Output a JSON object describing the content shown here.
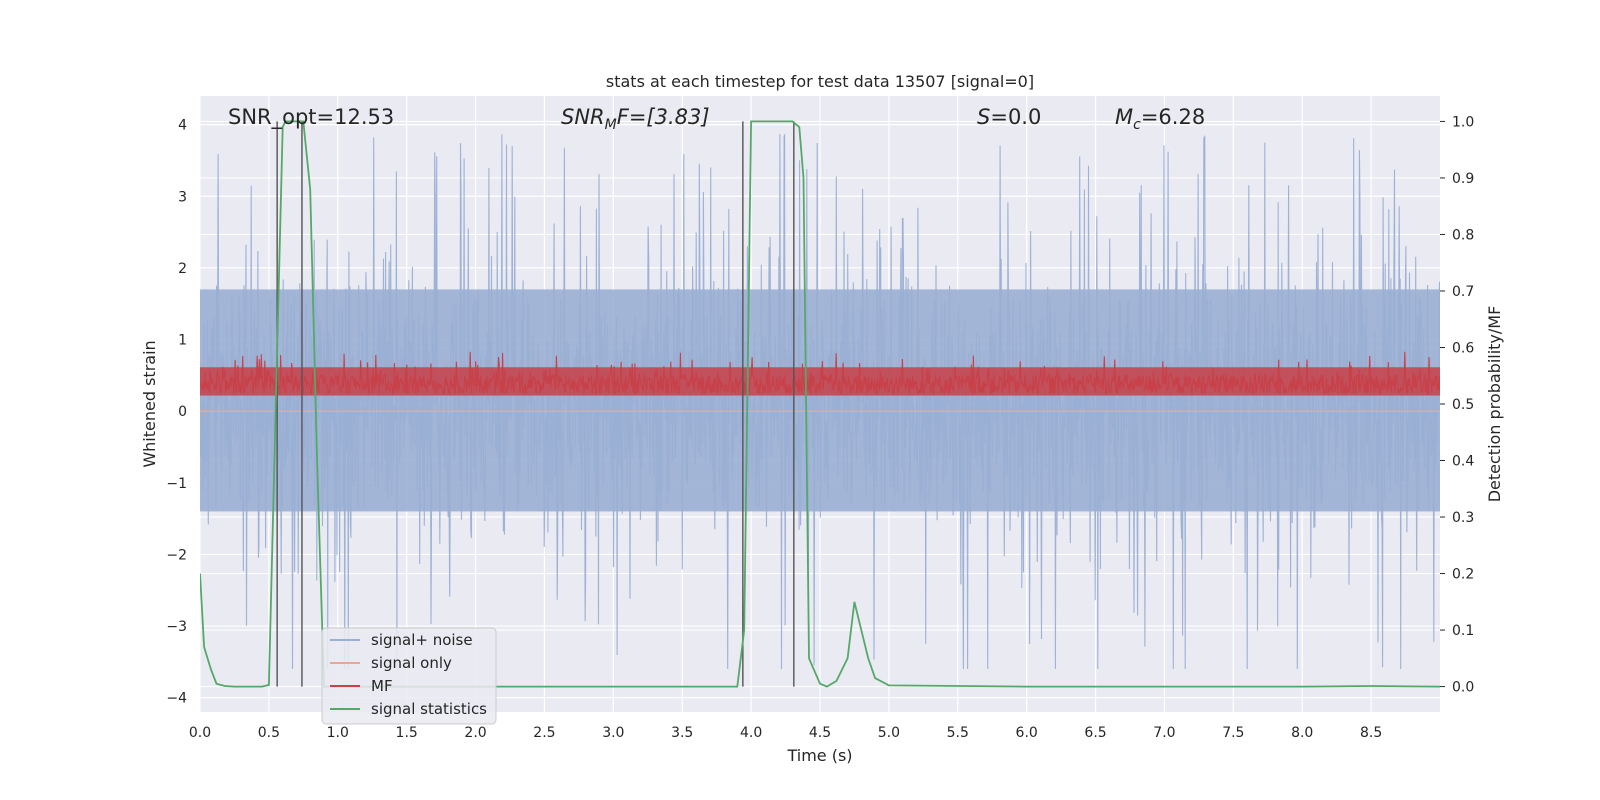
{
  "chart_data": {
    "type": "line",
    "title": "stats at each timestep for test data 13507 [signal=0]",
    "xlabel": "Time (s)",
    "ylabel_left": "Whitened strain",
    "ylabel_right": "Detection probability/MF",
    "xlim": [
      0.0,
      9.0
    ],
    "ylim_left": [
      -4.2,
      4.4
    ],
    "ylim_right": [
      -0.045,
      1.045
    ],
    "xticks": [
      "0.0",
      "0.5",
      "1.0",
      "1.5",
      "2.0",
      "2.5",
      "3.0",
      "3.5",
      "4.0",
      "4.5",
      "5.0",
      "5.5",
      "6.0",
      "6.5",
      "7.0",
      "7.5",
      "8.0",
      "8.5"
    ],
    "yticks_left": [
      "4",
      "3",
      "2",
      "1",
      "0",
      "−1",
      "−2",
      "−3",
      "−4"
    ],
    "yticks_right": [
      "1.0",
      "0.9",
      "0.8",
      "0.7",
      "0.6",
      "0.5",
      "0.4",
      "0.3",
      "0.2",
      "0.1",
      "0.0"
    ],
    "grid": true,
    "legend_placement": "lower-left",
    "annotations": {
      "snr_opt": "SNR_opt=12.53",
      "snr_mf_prefix": "SNR",
      "snr_mf_sub": "M",
      "snr_mf_suffix": "F=[3.83]",
      "s_var": "S",
      "s_value": "=0.0",
      "mc_var": "M",
      "mc_sub": "c",
      "mc_value": "=6.28"
    },
    "series": [
      {
        "name": "signal+ noise",
        "axis": "left",
        "color": "#9aafd4",
        "style": "dense noise",
        "description_values": {
          "core_min": -1.4,
          "core_max": 1.7,
          "spike_min": -3.6,
          "spike_max": 3.9
        }
      },
      {
        "name": "signal only",
        "axis": "left",
        "color": "#e9a890",
        "x": [
          0.0,
          9.0
        ],
        "values": [
          0.0,
          0.0
        ]
      },
      {
        "name": "MF",
        "axis": "right",
        "color": "#c84048",
        "style": "dense noise",
        "description_values": {
          "min": 0.5,
          "max": 0.6
        }
      },
      {
        "name": "signal statistics",
        "axis": "right",
        "color": "#55a868",
        "x": [
          0.0,
          0.03,
          0.08,
          0.12,
          0.18,
          0.25,
          0.35,
          0.45,
          0.5,
          0.55,
          0.6,
          0.62,
          0.7,
          0.75,
          0.8,
          0.85,
          0.9,
          1.0,
          2.0,
          3.0,
          3.9,
          3.95,
          4.0,
          4.1,
          4.2,
          4.3,
          4.35,
          4.38,
          4.42,
          4.5,
          4.55,
          4.62,
          4.7,
          4.75,
          4.85,
          4.9,
          5.0,
          6.0,
          7.0,
          8.0,
          8.5,
          9.0
        ],
        "values": [
          0.2,
          0.07,
          0.03,
          0.005,
          0.001,
          0.0,
          0.0,
          0.0,
          0.003,
          0.5,
          0.99,
          1.0,
          1.0,
          1.0,
          0.88,
          0.4,
          0.0,
          0.0,
          0.0,
          0.0,
          0.0,
          0.1,
          1.0,
          1.0,
          1.0,
          1.0,
          0.99,
          0.9,
          0.05,
          0.005,
          0.0,
          0.01,
          0.05,
          0.15,
          0.05,
          0.015,
          0.002,
          0.0,
          0.0,
          0.0,
          0.001,
          0.0
        ]
      }
    ],
    "vertical_markers": {
      "color": "#555555",
      "x": [
        0.56,
        0.74,
        3.94,
        4.31
      ]
    }
  }
}
